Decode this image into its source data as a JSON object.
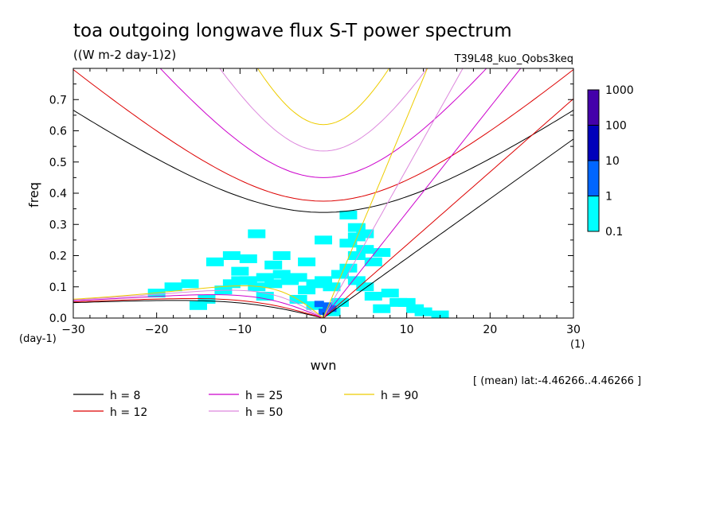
{
  "chart_data": {
    "type": "heatmap",
    "title": "toa outgoing longwave flux S-T power spectrum",
    "subtitle": "((W m-2 day-1)2)",
    "run_label": "T39L48_kuo_Qobs3keq",
    "xlabel": "wvn",
    "ylabel": "freq",
    "x_unit": "(1)",
    "y_unit": "(day-1)",
    "xlim": [
      -30,
      30
    ],
    "ylim": [
      0,
      0.8
    ],
    "x_ticks": [
      "−30",
      "−20",
      "−10",
      "0",
      "10",
      "20",
      "30"
    ],
    "y_ticks": [
      "0.0",
      "0.1",
      "0.2",
      "0.3",
      "0.4",
      "0.5",
      "0.6",
      "0.7"
    ],
    "mean_note": "[ (mean) lat:-4.46266..4.46266 ]",
    "colorbar": {
      "levels": [
        "0.1",
        "1",
        "10",
        "100",
        "1000"
      ],
      "colors": [
        "#00ffff",
        "#0066ff",
        "#0000bb",
        "#4400aa"
      ]
    },
    "series": [
      {
        "name": "h =  8",
        "h": 8,
        "color": "#000000"
      },
      {
        "name": "h = 12",
        "h": 12,
        "color": "#dd0000"
      },
      {
        "name": "h = 25",
        "h": 25,
        "color": "#cc00cc"
      },
      {
        "name": "h = 50",
        "h": 50,
        "color": "#dd88dd"
      },
      {
        "name": "h = 90",
        "h": 90,
        "color": "#eecc00"
      }
    ],
    "shading": [
      {
        "level": "0.1-1",
        "cells": [
          [
            -12,
            0.09
          ],
          [
            -11,
            0.11
          ],
          [
            -10,
            0.12
          ],
          [
            -9,
            0.12
          ],
          [
            -8,
            0.1
          ],
          [
            -7,
            0.13
          ],
          [
            -6,
            0.11
          ],
          [
            -5,
            0.14
          ],
          [
            -4,
            0.12
          ],
          [
            -3,
            0.13
          ],
          [
            -2,
            0.09
          ],
          [
            -1,
            0.11
          ],
          [
            0,
            0.12
          ],
          [
            1,
            0.1
          ],
          [
            2,
            0.14
          ],
          [
            3,
            0.16
          ],
          [
            4,
            0.2
          ],
          [
            3,
            0.24
          ],
          [
            4,
            0.26
          ],
          [
            5,
            0.27
          ],
          [
            5,
            0.22
          ],
          [
            6,
            0.18
          ],
          [
            7,
            0.21
          ],
          [
            4,
            0.12
          ],
          [
            5,
            0.1
          ],
          [
            6,
            0.07
          ],
          [
            8,
            0.08
          ],
          [
            10,
            0.05
          ],
          [
            12,
            0.02
          ],
          [
            -14,
            0.06
          ],
          [
            -15,
            0.04
          ],
          [
            -13,
            0.18
          ],
          [
            -9,
            0.19
          ],
          [
            -6,
            0.17
          ],
          [
            -10,
            0.15
          ],
          [
            -3,
            0.06
          ],
          [
            -7,
            0.07
          ],
          [
            -1,
            0.04
          ],
          [
            1,
            0.02
          ],
          [
            2,
            0.05
          ],
          [
            7,
            0.03
          ],
          [
            -16,
            0.11
          ],
          [
            -18,
            0.1
          ],
          [
            -11,
            0.2
          ],
          [
            -5,
            0.2
          ],
          [
            0,
            0.25
          ],
          [
            -8,
            0.27
          ],
          [
            9,
            0.05
          ],
          [
            11,
            0.03
          ],
          [
            14,
            0.01
          ],
          [
            3,
            0.33
          ],
          [
            4,
            0.29
          ],
          [
            -2,
            0.18
          ],
          [
            -20,
            0.08
          ]
        ]
      },
      {
        "level": "1-10",
        "cells": [
          [
            -0.5,
            0.045
          ],
          [
            0.5,
            0.04
          ],
          [
            1,
            0.03
          ],
          [
            0,
            0.02
          ]
        ]
      }
    ]
  }
}
